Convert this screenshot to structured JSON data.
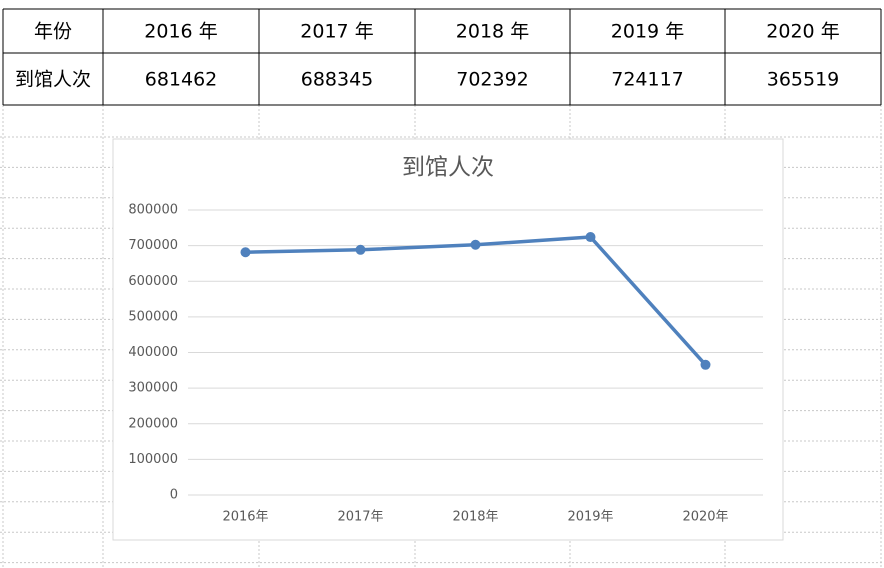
{
  "table": {
    "header": [
      "年份",
      "2016 年",
      "2017 年",
      "2018 年",
      "2019 年",
      "2020 年"
    ],
    "rows": [
      [
        "到馆人次",
        681462,
        688345,
        702392,
        724117,
        365519
      ]
    ]
  },
  "chart_data": {
    "type": "line",
    "title": "到馆人次",
    "categories": [
      "2016年",
      "2017年",
      "2018年",
      "2019年",
      "2020年"
    ],
    "values": [
      681462,
      688345,
      702392,
      724117,
      365519
    ],
    "color": "#4f81bd",
    "ylim": [
      0,
      800000
    ],
    "yticks": [
      0,
      100000,
      200000,
      300000,
      400000,
      500000,
      600000,
      700000,
      800000
    ],
    "grid": true
  }
}
